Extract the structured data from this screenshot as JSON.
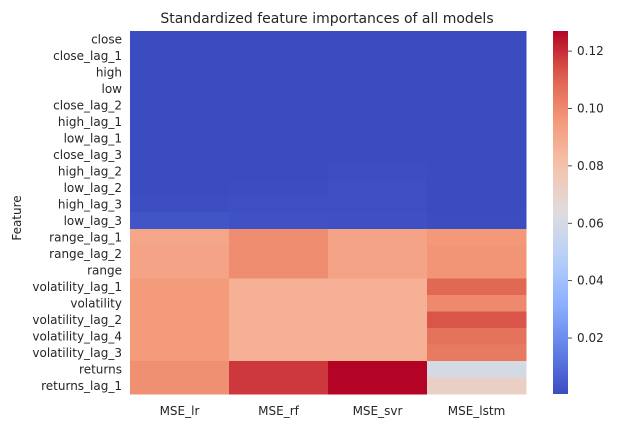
{
  "chart_data": {
    "type": "heatmap",
    "title": "Standardized feature importances of all models",
    "xlabel": "",
    "ylabel": "Feature",
    "columns": [
      "MSE_lr",
      "MSE_rf",
      "MSE_svr",
      "MSE_lstm"
    ],
    "rows": [
      "close",
      "close_lag_1",
      "high",
      "low",
      "close_lag_2",
      "high_lag_1",
      "low_lag_1",
      "close_lag_3",
      "high_lag_2",
      "low_lag_2",
      "high_lag_3",
      "low_lag_3",
      "range_lag_1",
      "range_lag_2",
      "range",
      "volatility_lag_1",
      "volatility",
      "volatility_lag_2",
      "volatility_lag_4",
      "volatility_lag_3",
      "returns",
      "returns_lag_1"
    ],
    "values": [
      [
        0.0005,
        0.0005,
        0.0005,
        0.0005
      ],
      [
        0.0005,
        0.0005,
        0.0005,
        0.0005
      ],
      [
        0.0005,
        0.0005,
        0.0005,
        0.0005
      ],
      [
        0.0005,
        0.0005,
        0.0005,
        0.0005
      ],
      [
        0.0005,
        0.0005,
        0.0005,
        0.0005
      ],
      [
        0.0005,
        0.0005,
        0.0005,
        0.0005
      ],
      [
        0.0005,
        0.0005,
        0.0005,
        0.0005
      ],
      [
        0.0005,
        0.0005,
        0.0006,
        0.0005
      ],
      [
        0.0005,
        0.0006,
        0.0012,
        0.0005
      ],
      [
        0.0006,
        0.0008,
        0.0014,
        0.0005
      ],
      [
        0.001,
        0.0015,
        0.0015,
        0.0006
      ],
      [
        0.003,
        0.002,
        0.0018,
        0.0007
      ],
      [
        0.091,
        0.099,
        0.092,
        0.096
      ],
      [
        0.092,
        0.099,
        0.092,
        0.097
      ],
      [
        0.092,
        0.099,
        0.092,
        0.097
      ],
      [
        0.095,
        0.087,
        0.087,
        0.109
      ],
      [
        0.095,
        0.087,
        0.087,
        0.1
      ],
      [
        0.095,
        0.087,
        0.087,
        0.113
      ],
      [
        0.095,
        0.087,
        0.087,
        0.106
      ],
      [
        0.095,
        0.087,
        0.087,
        0.104
      ],
      [
        0.098,
        0.118,
        0.127,
        0.06
      ],
      [
        0.098,
        0.118,
        0.127,
        0.072
      ]
    ],
    "colorbar": {
      "colormap": "coolwarm",
      "range": [
        0.0005,
        0.127
      ],
      "ticks": [
        0.02,
        0.04,
        0.06,
        0.08,
        0.1,
        0.12
      ],
      "tick_labels": [
        "0.02",
        "0.04",
        "0.06",
        "0.08",
        "0.10",
        "0.12"
      ]
    }
  }
}
